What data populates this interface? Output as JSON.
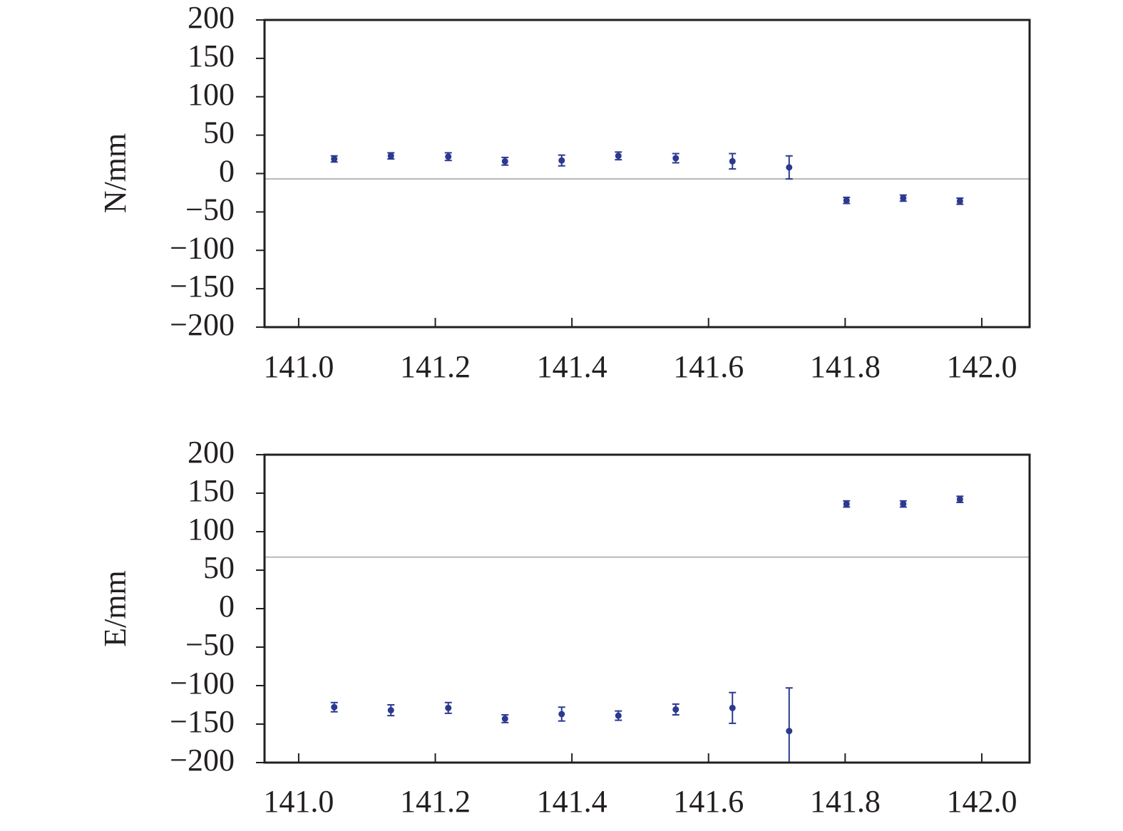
{
  "chart_data": [
    {
      "type": "scatter",
      "title": "",
      "xlabel": "",
      "ylabel": "N/mm",
      "xlim": [
        140.95,
        142.07
      ],
      "ylim": [
        -200,
        200
      ],
      "x_ticks": [
        "141.0",
        "141.2",
        "141.4",
        "141.6",
        "141.8",
        "142.0"
      ],
      "y_ticks": [
        "200",
        "150",
        "100",
        "50",
        "0",
        "−50",
        "−100",
        "−150",
        "−200"
      ],
      "x_tick_values": [
        141.0,
        141.2,
        141.4,
        141.6,
        141.8,
        142.0
      ],
      "y_tick_values": [
        200,
        150,
        100,
        50,
        0,
        -50,
        -100,
        -150,
        -200
      ],
      "reference_line": -7,
      "grid": false,
      "points": [
        {
          "x": 141.052,
          "y": 19,
          "err": 4
        },
        {
          "x": 141.135,
          "y": 23,
          "err": 4
        },
        {
          "x": 141.219,
          "y": 22,
          "err": 5
        },
        {
          "x": 141.302,
          "y": 16,
          "err": 5
        },
        {
          "x": 141.385,
          "y": 17,
          "err": 7
        },
        {
          "x": 141.468,
          "y": 23,
          "err": 5
        },
        {
          "x": 141.552,
          "y": 20,
          "err": 6
        },
        {
          "x": 141.635,
          "y": 16,
          "err": 10
        },
        {
          "x": 141.718,
          "y": 8,
          "err": 15
        },
        {
          "x": 141.802,
          "y": -35,
          "err": 4
        },
        {
          "x": 141.885,
          "y": -32,
          "err": 4
        },
        {
          "x": 141.968,
          "y": -36,
          "err": 4
        }
      ],
      "colors": {
        "points": "#2b3990",
        "reference_line": "#a7a9ac",
        "axes": "#231f20"
      }
    },
    {
      "type": "scatter",
      "title": "",
      "xlabel": "",
      "ylabel": "E/mm",
      "xlim": [
        140.95,
        142.07
      ],
      "ylim": [
        -200,
        200
      ],
      "x_ticks": [
        "141.0",
        "141.2",
        "141.4",
        "141.6",
        "141.8",
        "142.0"
      ],
      "y_ticks": [
        "200",
        "150",
        "100",
        "50",
        "0",
        "−50",
        "−100",
        "−150",
        "−200"
      ],
      "x_tick_values": [
        141.0,
        141.2,
        141.4,
        141.6,
        141.8,
        142.0
      ],
      "y_tick_values": [
        200,
        150,
        100,
        50,
        0,
        -50,
        -100,
        -150,
        -200
      ],
      "reference_line": 67,
      "grid": false,
      "points": [
        {
          "x": 141.052,
          "y": -128,
          "err": 6
        },
        {
          "x": 141.135,
          "y": -132,
          "err": 7
        },
        {
          "x": 141.219,
          "y": -129,
          "err": 7
        },
        {
          "x": 141.302,
          "y": -143,
          "err": 5
        },
        {
          "x": 141.385,
          "y": -137,
          "err": 9
        },
        {
          "x": 141.468,
          "y": -139,
          "err": 6
        },
        {
          "x": 141.552,
          "y": -131,
          "err": 7
        },
        {
          "x": 141.635,
          "y": -129,
          "err": 20
        },
        {
          "x": 141.718,
          "y": -159,
          "err": 56
        },
        {
          "x": 141.802,
          "y": 136,
          "err": 4
        },
        {
          "x": 141.885,
          "y": 136,
          "err": 4
        },
        {
          "x": 141.968,
          "y": 142,
          "err": 4
        }
      ],
      "colors": {
        "points": "#2b3990",
        "reference_line": "#a7a9ac",
        "axes": "#231f20"
      }
    }
  ]
}
